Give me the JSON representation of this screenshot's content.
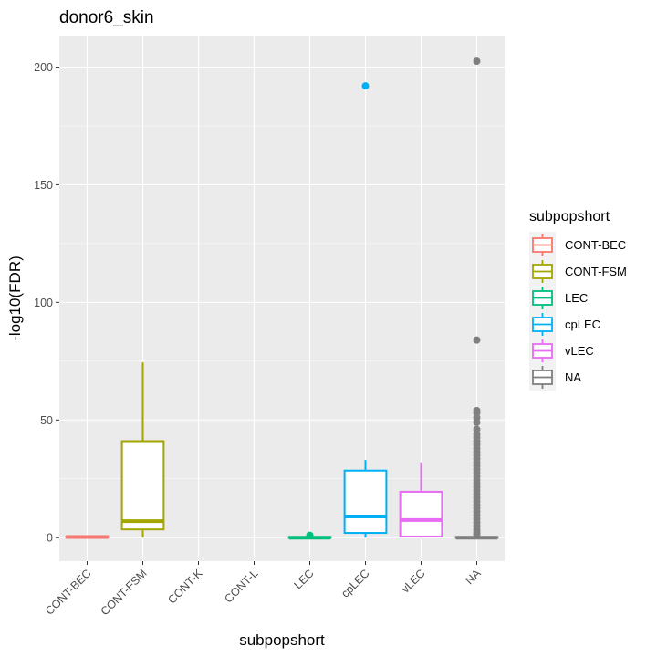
{
  "chart_data": {
    "type": "boxplot",
    "title": "donor6_skin",
    "xlabel": "subpopshort",
    "ylabel": "-log10(FDR)",
    "ylim": [
      -10,
      213
    ],
    "yticks": [
      0,
      50,
      100,
      150,
      200
    ],
    "grid": true,
    "legend_position": "right",
    "legend_title": "subpopshort",
    "categories": [
      "CONT-BEC",
      "CONT-FSM",
      "CONT-K",
      "CONT-L",
      "LEC",
      "cpLEC",
      "vLEC",
      "NA"
    ],
    "legend": [
      {
        "name": "CONT-BEC",
        "color": "#F8766D"
      },
      {
        "name": "CONT-FSM",
        "color": "#A3A500"
      },
      {
        "name": "LEC",
        "color": "#00BF7D"
      },
      {
        "name": "cpLEC",
        "color": "#00B0F6"
      },
      {
        "name": "vLEC",
        "color": "#E76BF3"
      },
      {
        "name": "NA",
        "color": "#7F7F7F"
      }
    ],
    "boxes": [
      {
        "category": "CONT-BEC",
        "color": "#F8766D",
        "q1": 0,
        "median": 0.3,
        "q3": 0.6,
        "whisker_low": 0,
        "whisker_high": 0.6,
        "outliers": []
      },
      {
        "category": "CONT-FSM",
        "color": "#A3A500",
        "q1": 3.5,
        "median": 7,
        "q3": 41,
        "whisker_low": 0,
        "whisker_high": 74.5,
        "outliers": []
      },
      {
        "category": "LEC",
        "color": "#00BF7D",
        "q1": 0,
        "median": 0,
        "q3": 0.3,
        "whisker_low": 0,
        "whisker_high": 0.3,
        "outliers": [
          1
        ]
      },
      {
        "category": "cpLEC",
        "color": "#00B0F6",
        "q1": 2,
        "median": 9,
        "q3": 28.5,
        "whisker_low": 0,
        "whisker_high": 33,
        "outliers": [
          192
        ]
      },
      {
        "category": "vLEC",
        "color": "#E76BF3",
        "q1": 0.5,
        "median": 7.5,
        "q3": 19.5,
        "whisker_low": 0,
        "whisker_high": 32,
        "outliers": []
      },
      {
        "category": "NA",
        "color": "#7F7F7F",
        "q1": 0,
        "median": 0,
        "q3": 0.3,
        "whisker_low": 0,
        "whisker_high": 0.5,
        "outliers": [
          202.5,
          84,
          54,
          53,
          51,
          49,
          46,
          44,
          42.5,
          41,
          39.5,
          38,
          36.5,
          35,
          33.5,
          32,
          30.5,
          29,
          27.5,
          26,
          24.5,
          23,
          21.5,
          20,
          18.5,
          17,
          15.5,
          14,
          12.5,
          11,
          9.5,
          8,
          6.5,
          5,
          3.5,
          2.5,
          1.5
        ]
      }
    ]
  }
}
